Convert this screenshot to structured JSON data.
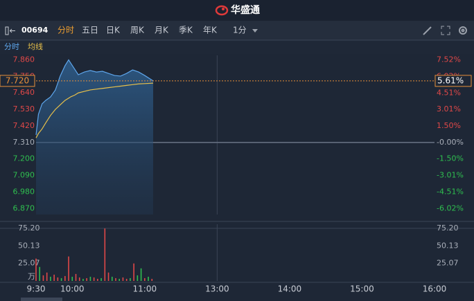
{
  "header": {
    "title": "华盛通"
  },
  "toolbar": {
    "code": "00694",
    "tabs": [
      "分时",
      "五日",
      "日K",
      "周K",
      "月K",
      "季K",
      "年K"
    ],
    "active_tab": 0,
    "interval": "1分"
  },
  "chart_data": [
    {
      "type": "line",
      "x": [
        0,
        2,
        5,
        8,
        12,
        16,
        20,
        24,
        27,
        29,
        32,
        35,
        40,
        45,
        50,
        55,
        60,
        65,
        70,
        75,
        80,
        85,
        90,
        97
      ],
      "series": [
        {
          "name": "分时",
          "color": "#5ea6ec",
          "values": [
            7.36,
            7.498,
            7.567,
            7.59,
            7.613,
            7.659,
            7.752,
            7.821,
            7.86,
            7.835,
            7.798,
            7.761,
            7.779,
            7.789,
            7.779,
            7.784,
            7.77,
            7.756,
            7.752,
            7.77,
            7.793,
            7.779,
            7.756,
            7.72
          ]
        },
        {
          "name": "均线",
          "color": "#e8c04a",
          "values": [
            7.34,
            7.37,
            7.4,
            7.44,
            7.49,
            7.53,
            7.56,
            7.59,
            7.605,
            7.615,
            7.625,
            7.64,
            7.65,
            7.66,
            7.665,
            7.67,
            7.675,
            7.68,
            7.685,
            7.69,
            7.695,
            7.7,
            7.702,
            7.705
          ]
        }
      ],
      "xlim": [
        0,
        330
      ],
      "ylim": [
        6.83,
        7.89
      ],
      "yticks": [
        {
          "value": 7.86,
          "label": "7.860"
        },
        {
          "value": 7.75,
          "label": "7.750"
        },
        {
          "value": 7.64,
          "label": "7.640"
        },
        {
          "value": 7.53,
          "label": "7.530"
        },
        {
          "value": 7.42,
          "label": "7.420"
        },
        {
          "value": 7.31,
          "label": "7.310"
        },
        {
          "value": 7.2,
          "label": "7.200"
        },
        {
          "value": 7.09,
          "label": "7.090"
        },
        {
          "value": 6.98,
          "label": "6.980"
        },
        {
          "value": 6.87,
          "label": "6.870"
        }
      ],
      "y2lim": [
        -6.566,
        7.934
      ],
      "y2ticks": [
        {
          "value": 7.52,
          "label": "7.52%"
        },
        {
          "value": 6.02,
          "label": "6.02%"
        },
        {
          "value": 4.51,
          "label": "4.51%"
        },
        {
          "value": 3.01,
          "label": "3.01%"
        },
        {
          "value": 1.5,
          "label": "1.50%"
        },
        {
          "value": 0,
          "label": "-0.00%"
        },
        {
          "value": -1.5,
          "label": "-1.50%"
        },
        {
          "value": -3.01,
          "label": "-3.01%"
        },
        {
          "value": -4.51,
          "label": "-4.51%"
        },
        {
          "value": -6.02,
          "label": "-6.02%"
        }
      ],
      "last_price": {
        "value": 7.72,
        "label": "7.720"
      },
      "last_change": {
        "value": 5.61,
        "label": "5.61%"
      }
    },
    {
      "type": "bar",
      "unit": "万",
      "x": [
        0,
        3,
        6,
        9,
        12,
        15,
        18,
        21,
        24,
        27,
        30,
        33,
        36,
        39,
        42,
        45,
        48,
        51,
        54,
        57,
        60,
        63,
        66,
        69,
        72,
        75,
        78,
        81,
        84,
        87,
        90,
        93,
        96
      ],
      "values": [
        32,
        20,
        8,
        12,
        6,
        9,
        5,
        4,
        7,
        35,
        6,
        10,
        5,
        3,
        4,
        6,
        5,
        3,
        4,
        75,
        12,
        6,
        4,
        3,
        5,
        3,
        4,
        25,
        8,
        18,
        4,
        6,
        3
      ],
      "colors": [
        "#e04848",
        "#2fbf4f",
        "#e04848",
        "#e04848",
        "#2fbf4f",
        "#e04848",
        "#e04848",
        "#2fbf4f",
        "#e04848",
        "#e04848",
        "#2fbf4f",
        "#e04848",
        "#e04848",
        "#2fbf4f",
        "#e04848",
        "#2fbf4f",
        "#e04848",
        "#e04848",
        "#2fbf4f",
        "#e04848",
        "#e04848",
        "#2fbf4f",
        "#e04848",
        "#2fbf4f",
        "#e04848",
        "#e04848",
        "#2fbf4f",
        "#e04848",
        "#2fbf4f",
        "#2fbf4f",
        "#e04848",
        "#2fbf4f",
        "#e04848"
      ],
      "xlim": [
        0,
        330
      ],
      "ylim": [
        0,
        75.2
      ],
      "yticks": [
        {
          "value": 75.2,
          "label": "75.20"
        },
        {
          "value": 50.13,
          "label": "50.13"
        },
        {
          "value": 25.07,
          "label": "25.07"
        }
      ],
      "xticks": [
        {
          "value": 0,
          "label": "9:30"
        },
        {
          "value": 30,
          "label": "10:00"
        },
        {
          "value": 90,
          "label": "11:00"
        },
        {
          "value": 150,
          "label": "13:00"
        },
        {
          "value": 210,
          "label": "14:00"
        },
        {
          "value": 270,
          "label": "15:00"
        },
        {
          "value": 330,
          "label": "16:00"
        }
      ]
    }
  ]
}
